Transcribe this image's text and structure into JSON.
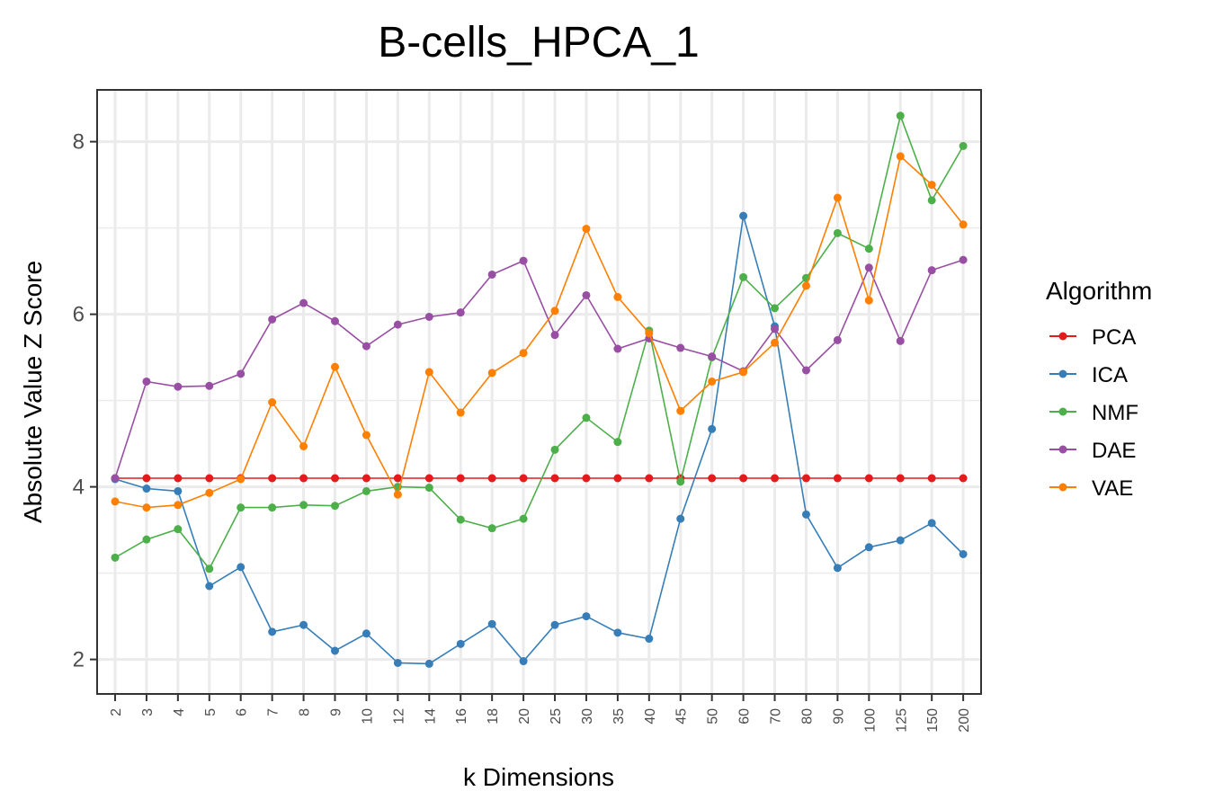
{
  "chart_data": {
    "type": "line",
    "title": "B-cells_HPCA_1",
    "xlabel": "k Dimensions",
    "ylabel": "Absolute Value Z Score",
    "categories": [
      "2",
      "3",
      "4",
      "5",
      "6",
      "7",
      "8",
      "9",
      "10",
      "12",
      "14",
      "16",
      "18",
      "20",
      "25",
      "30",
      "35",
      "40",
      "45",
      "50",
      "60",
      "70",
      "80",
      "90",
      "100",
      "125",
      "150",
      "200"
    ],
    "yticks": [
      2,
      4,
      6,
      8
    ],
    "ylim": [
      1.6,
      8.6
    ],
    "grid": true,
    "legend": {
      "title": "Algorithm",
      "position": "right"
    },
    "series": [
      {
        "name": "PCA",
        "color": "#e41a1c",
        "values": [
          4.1,
          4.1,
          4.1,
          4.1,
          4.1,
          4.1,
          4.1,
          4.1,
          4.1,
          4.1,
          4.1,
          4.1,
          4.1,
          4.1,
          4.1,
          4.1,
          4.1,
          4.1,
          4.1,
          4.1,
          4.1,
          4.1,
          4.1,
          4.1,
          4.1,
          4.1,
          4.1,
          4.1
        ]
      },
      {
        "name": "ICA",
        "color": "#377eb8",
        "values": [
          4.09,
          3.98,
          3.95,
          2.85,
          3.07,
          2.32,
          2.4,
          2.1,
          2.3,
          1.96,
          1.95,
          2.18,
          2.41,
          1.98,
          2.4,
          2.5,
          2.31,
          2.24,
          3.63,
          4.67,
          7.14,
          5.86,
          3.68,
          3.06,
          3.3,
          3.38,
          3.58,
          3.22
        ]
      },
      {
        "name": "NMF",
        "color": "#4daf4a",
        "values": [
          3.18,
          3.39,
          3.51,
          3.05,
          3.76,
          3.76,
          3.79,
          3.78,
          3.95,
          4.0,
          3.99,
          3.62,
          3.52,
          3.63,
          4.43,
          4.8,
          4.52,
          5.81,
          4.06,
          5.5,
          6.43,
          6.07,
          6.42,
          6.94,
          6.76,
          8.3,
          7.32,
          7.95
        ]
      },
      {
        "name": "DAE",
        "color": "#984ea3",
        "values": [
          4.1,
          5.22,
          5.16,
          5.17,
          5.31,
          5.94,
          6.13,
          5.92,
          5.63,
          5.88,
          5.97,
          6.02,
          6.46,
          6.62,
          5.76,
          6.22,
          5.6,
          5.72,
          5.61,
          5.51,
          5.34,
          5.83,
          5.35,
          5.7,
          6.54,
          5.69,
          6.51,
          6.63
        ]
      },
      {
        "name": "VAE",
        "color": "#ff7f00",
        "values": [
          3.83,
          3.76,
          3.79,
          3.93,
          4.09,
          4.98,
          4.47,
          5.39,
          4.6,
          3.91,
          5.33,
          4.86,
          5.32,
          5.55,
          6.04,
          6.99,
          6.2,
          5.78,
          4.88,
          5.22,
          5.33,
          5.67,
          6.33,
          7.35,
          6.16,
          7.83,
          7.5,
          7.04
        ]
      }
    ]
  }
}
